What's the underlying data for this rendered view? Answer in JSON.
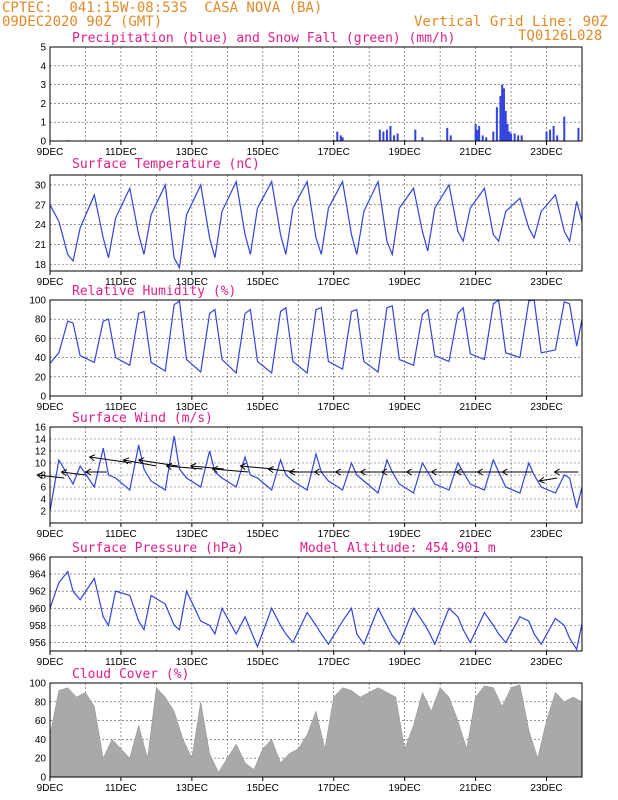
{
  "header": {
    "line1": "CPTEC:  041:15W-08:53S  CASA NOVA (BA)",
    "line2": "09DEC2020 90Z (GMT)",
    "grid_label": "Vertical Grid Line: 90Z",
    "code": "TQ0126L028"
  },
  "colors": {
    "line": "#3344dd",
    "snow": "#22aa22",
    "cloud": "#a9a9a9",
    "title": "#e0208a",
    "header": "#e08a2a"
  },
  "x_ticks": [
    "9DEC",
    "11DEC",
    "13DEC",
    "15DEC",
    "17DEC",
    "19DEC",
    "21DEC",
    "23DEC"
  ],
  "x_days": [
    9,
    11,
    13,
    15,
    17,
    19,
    21,
    23
  ],
  "xlim": [
    9,
    24
  ],
  "chart_data": [
    {
      "type": "bar",
      "title": "Precipitation (blue) and Snow Fall (green) (mm/h)",
      "ylim": [
        0,
        5
      ],
      "y_ticks": [
        0,
        1,
        2,
        3,
        4,
        5
      ],
      "series": [
        {
          "name": "Precipitation",
          "x": [
            17.1,
            17.2,
            17.25,
            18.3,
            18.4,
            18.5,
            18.6,
            18.7,
            18.8,
            19.3,
            19.5,
            20.2,
            20.3,
            21.0,
            21.05,
            21.1,
            21.2,
            21.3,
            21.5,
            21.6,
            21.7,
            21.75,
            21.8,
            21.85,
            21.9,
            21.95,
            22.0,
            22.1,
            22.2,
            22.3,
            23.0,
            23.1,
            23.2,
            23.3,
            23.5,
            23.9
          ],
          "values": [
            0.5,
            0.3,
            0.2,
            0.6,
            0.5,
            0.6,
            0.8,
            0.3,
            0.4,
            0.6,
            0.2,
            0.7,
            0.3,
            0.9,
            0.6,
            0.8,
            0.3,
            0.2,
            0.5,
            1.8,
            2.4,
            3.0,
            2.8,
            1.6,
            0.9,
            0.5,
            0.4,
            0.4,
            0.3,
            0.3,
            0.5,
            0.6,
            0.8,
            0.3,
            1.3,
            0.7
          ]
        },
        {
          "name": "Snow Fall",
          "x": [
            9.5,
            11.0,
            13.0,
            15.0,
            17.0,
            19.0,
            21.0,
            23.0
          ],
          "values": [
            0.05,
            0.05,
            0.05,
            0.05,
            0.05,
            0.05,
            0.05,
            0.05
          ]
        }
      ]
    },
    {
      "type": "line",
      "title": "Surface Temperature (nC)",
      "ylim": [
        17,
        31.5
      ],
      "y_ticks": [
        18,
        21,
        24,
        27,
        30
      ],
      "x": [
        9.0,
        9.25,
        9.5,
        9.65,
        9.85,
        10.25,
        10.5,
        10.65,
        10.85,
        11.25,
        11.5,
        11.65,
        11.85,
        12.25,
        12.5,
        12.65,
        12.85,
        13.25,
        13.5,
        13.65,
        13.85,
        14.25,
        14.5,
        14.65,
        14.85,
        15.25,
        15.5,
        15.65,
        15.85,
        16.25,
        16.5,
        16.65,
        16.85,
        17.25,
        17.5,
        17.65,
        17.85,
        18.25,
        18.5,
        18.65,
        18.85,
        19.25,
        19.5,
        19.65,
        19.85,
        20.25,
        20.5,
        20.65,
        20.85,
        21.25,
        21.5,
        21.65,
        21.85,
        22.25,
        22.5,
        22.65,
        22.85,
        23.25,
        23.5,
        23.65,
        23.85,
        24.0
      ],
      "values": [
        27.0,
        24.5,
        19.5,
        18.5,
        23.5,
        28.5,
        22.0,
        19.0,
        25.0,
        29.5,
        22.5,
        19.5,
        25.5,
        30.0,
        19.0,
        17.5,
        25.5,
        30.0,
        22.0,
        19.0,
        26.0,
        30.5,
        22.5,
        19.5,
        26.5,
        30.5,
        22.5,
        19.5,
        26.5,
        30.5,
        22.0,
        19.5,
        26.5,
        30.5,
        22.5,
        19.5,
        26.0,
        30.5,
        21.5,
        19.5,
        26.5,
        29.5,
        23.0,
        20.0,
        26.5,
        30.0,
        23.0,
        21.5,
        26.5,
        29.5,
        22.5,
        21.5,
        26.0,
        28.0,
        23.5,
        22.0,
        26.0,
        28.5,
        23.0,
        21.5,
        27.5,
        24.5
      ]
    },
    {
      "type": "line",
      "title": "Relative Humidity (%)",
      "ylim": [
        0,
        100
      ],
      "y_ticks": [
        0,
        20,
        40,
        60,
        80,
        100
      ],
      "x": [
        9.0,
        9.25,
        9.5,
        9.65,
        9.85,
        10.25,
        10.5,
        10.65,
        10.85,
        11.25,
        11.5,
        11.65,
        11.85,
        12.25,
        12.5,
        12.65,
        12.85,
        13.25,
        13.5,
        13.65,
        13.85,
        14.25,
        14.5,
        14.65,
        14.85,
        15.25,
        15.5,
        15.65,
        15.85,
        16.25,
        16.5,
        16.65,
        16.85,
        17.25,
        17.5,
        17.65,
        17.85,
        18.25,
        18.5,
        18.65,
        18.85,
        19.25,
        19.5,
        19.65,
        19.85,
        20.25,
        20.5,
        20.65,
        20.85,
        21.25,
        21.5,
        21.65,
        21.85,
        22.25,
        22.5,
        22.65,
        22.85,
        23.25,
        23.5,
        23.65,
        23.85,
        24.0
      ],
      "values": [
        34,
        45,
        78,
        76,
        42,
        35,
        78,
        80,
        40,
        32,
        86,
        88,
        35,
        26,
        95,
        99,
        38,
        25,
        86,
        90,
        38,
        24,
        86,
        90,
        36,
        24,
        88,
        92,
        36,
        24,
        90,
        92,
        36,
        28,
        88,
        90,
        36,
        25,
        92,
        94,
        38,
        32,
        85,
        90,
        42,
        36,
        86,
        92,
        44,
        38,
        96,
        100,
        45,
        40,
        99,
        100,
        45,
        48,
        98,
        96,
        52,
        80
      ]
    },
    {
      "type": "line",
      "title": "Surface Wind (m/s)",
      "ylim": [
        0,
        16
      ],
      "y_ticks": [
        2,
        4,
        6,
        8,
        10,
        12,
        14,
        16
      ],
      "x": [
        9.0,
        9.25,
        9.5,
        9.65,
        9.85,
        10.25,
        10.5,
        10.65,
        10.85,
        11.25,
        11.5,
        11.65,
        11.85,
        12.25,
        12.5,
        12.65,
        12.85,
        13.25,
        13.5,
        13.65,
        13.85,
        14.25,
        14.5,
        14.65,
        14.85,
        15.25,
        15.5,
        15.65,
        15.85,
        16.25,
        16.5,
        16.65,
        16.85,
        17.25,
        17.5,
        17.65,
        17.85,
        18.25,
        18.5,
        18.65,
        18.85,
        19.25,
        19.5,
        19.65,
        19.85,
        20.25,
        20.5,
        20.65,
        20.85,
        21.25,
        21.5,
        21.65,
        21.85,
        22.25,
        22.5,
        22.65,
        22.85,
        23.25,
        23.5,
        23.65,
        23.85,
        24.0
      ],
      "values": [
        2.0,
        10.5,
        8.0,
        6.5,
        9.5,
        6.0,
        12.5,
        8.0,
        7.5,
        5.5,
        13.0,
        9.0,
        7.0,
        5.5,
        14.5,
        9.0,
        7.5,
        6.0,
        12.0,
        8.5,
        7.5,
        6.0,
        11.0,
        8.0,
        7.5,
        5.5,
        10.5,
        8.0,
        7.0,
        5.5,
        11.5,
        8.5,
        7.0,
        5.5,
        10.0,
        8.0,
        7.0,
        5.0,
        10.5,
        8.5,
        6.5,
        5.0,
        10.0,
        8.5,
        6.5,
        5.5,
        10.0,
        8.5,
        6.5,
        5.5,
        10.5,
        8.5,
        6.0,
        5.0,
        10.0,
        8.0,
        6.0,
        5.0,
        8.0,
        7.5,
        2.5,
        6.0
      ],
      "vectors": {
        "x": [
          9.4,
          10.0,
          10.6,
          11.3,
          12.0,
          12.6,
          13.3,
          13.9,
          14.6,
          15.3,
          16.0,
          16.6,
          17.3,
          17.9,
          18.6,
          19.2,
          19.9,
          20.6,
          21.3,
          21.9,
          22.6,
          23.3,
          23.9
        ],
        "y": [
          7.5,
          8.0,
          8.5,
          10.0,
          9.5,
          9.5,
          9.0,
          9.0,
          8.5,
          9.0,
          8.5,
          8.5,
          8.5,
          8.5,
          8.5,
          8.5,
          8.5,
          8.5,
          8.5,
          8.5,
          8.5,
          7.5,
          8.5
        ],
        "u": [
          -0.9,
          -0.8,
          -0.7,
          -1.4,
          -1.1,
          -1.3,
          -1.2,
          -1.1,
          -1.2,
          -1.1,
          -1.0,
          -1.0,
          -1.0,
          -1.0,
          -1.0,
          -1.0,
          -1.0,
          -1.0,
          -1.0,
          -1.0,
          -1.0,
          -0.6,
          -0.8
        ],
        "v": [
          0.1,
          0.1,
          0.0,
          0.2,
          0.2,
          0.2,
          0.1,
          0.1,
          0.1,
          0.1,
          0.1,
          0.0,
          0.0,
          0.0,
          0.0,
          0.0,
          0.0,
          0.0,
          0.0,
          0.0,
          0.0,
          -0.1,
          0.0
        ]
      }
    },
    {
      "type": "line",
      "title": "Surface Pressure (hPa)",
      "annotation": "Model Altitude: 454.901 m",
      "ylim": [
        955,
        966
      ],
      "y_ticks": [
        956,
        958,
        960,
        962,
        964,
        966
      ],
      "x": [
        9.0,
        9.25,
        9.5,
        9.65,
        9.85,
        10.25,
        10.5,
        10.65,
        10.85,
        11.25,
        11.5,
        11.65,
        11.85,
        12.25,
        12.5,
        12.65,
        12.85,
        13.25,
        13.5,
        13.65,
        13.85,
        14.25,
        14.5,
        14.65,
        14.85,
        15.25,
        15.5,
        15.65,
        15.85,
        16.25,
        16.5,
        16.65,
        16.85,
        17.25,
        17.5,
        17.65,
        17.85,
        18.25,
        18.5,
        18.65,
        18.85,
        19.25,
        19.5,
        19.65,
        19.85,
        20.25,
        20.5,
        20.65,
        20.85,
        21.25,
        21.5,
        21.65,
        21.85,
        22.25,
        22.5,
        22.65,
        22.85,
        23.25,
        23.5,
        23.65,
        23.85,
        24.0
      ],
      "values": [
        960.0,
        963.0,
        964.3,
        962.0,
        961.0,
        963.5,
        959.0,
        958.0,
        962.0,
        961.5,
        958.5,
        957.5,
        961.5,
        960.5,
        958.0,
        957.5,
        962.0,
        958.5,
        958.0,
        957.0,
        960.0,
        957.0,
        959.0,
        957.5,
        955.5,
        960.0,
        958.0,
        957.0,
        956.0,
        959.5,
        958.0,
        957.0,
        955.8,
        958.5,
        960.0,
        957.0,
        955.8,
        960.0,
        958.0,
        956.8,
        955.8,
        960.0,
        958.5,
        957.5,
        955.8,
        960.0,
        959.0,
        957.5,
        956.0,
        959.5,
        958.0,
        957.0,
        956.0,
        959.0,
        958.5,
        957.0,
        955.8,
        958.8,
        958.0,
        956.5,
        955.2,
        958.2
      ]
    },
    {
      "type": "area",
      "title": "Cloud Cover (%)",
      "ylim": [
        0,
        100
      ],
      "y_ticks": [
        0,
        20,
        40,
        60,
        80,
        100
      ],
      "x": [
        9.0,
        9.25,
        9.5,
        9.75,
        10.0,
        10.25,
        10.5,
        10.75,
        11.0,
        11.25,
        11.5,
        11.75,
        12.0,
        12.25,
        12.5,
        12.75,
        13.0,
        13.25,
        13.5,
        13.75,
        14.0,
        14.25,
        14.5,
        14.75,
        15.0,
        15.25,
        15.5,
        15.75,
        16.0,
        16.25,
        16.5,
        16.75,
        17.0,
        17.25,
        17.5,
        17.75,
        18.0,
        18.25,
        18.5,
        18.75,
        19.0,
        19.25,
        19.5,
        19.75,
        20.0,
        20.25,
        20.5,
        20.75,
        21.0,
        21.25,
        21.5,
        21.75,
        22.0,
        22.25,
        22.5,
        22.75,
        23.0,
        23.25,
        23.5,
        23.75,
        24.0
      ],
      "values": [
        45,
        92,
        95,
        85,
        90,
        75,
        20,
        40,
        30,
        20,
        55,
        20,
        95,
        85,
        70,
        40,
        20,
        80,
        25,
        5,
        20,
        35,
        15,
        8,
        30,
        40,
        15,
        25,
        30,
        45,
        70,
        30,
        85,
        95,
        92,
        85,
        90,
        95,
        90,
        85,
        30,
        55,
        90,
        70,
        95,
        85,
        60,
        30,
        85,
        97,
        95,
        75,
        95,
        98,
        50,
        20,
        60,
        90,
        80,
        85,
        80
      ]
    }
  ]
}
